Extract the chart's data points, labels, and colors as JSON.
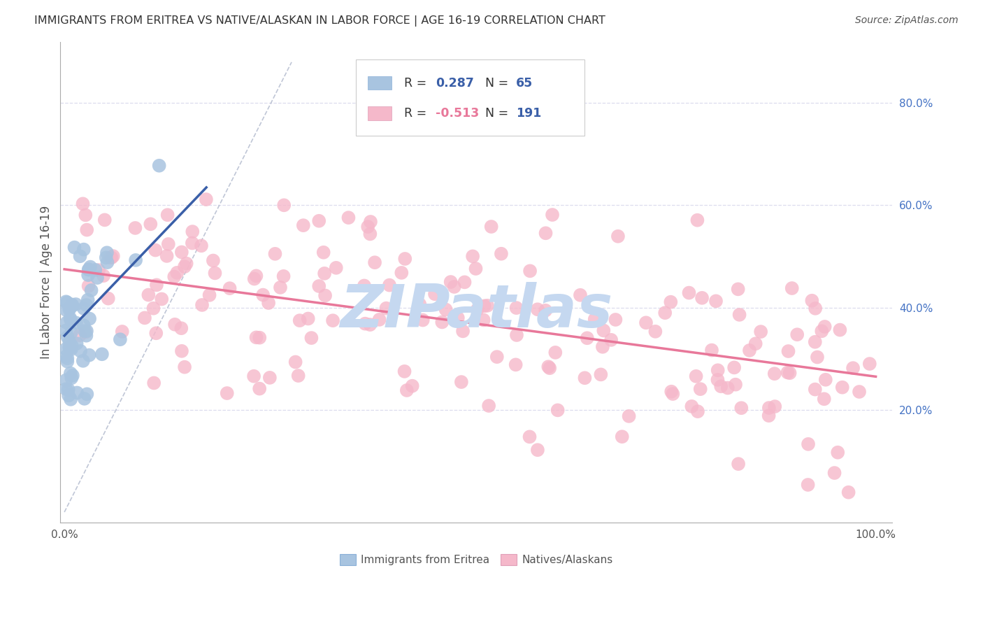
{
  "title": "IMMIGRANTS FROM ERITREA VS NATIVE/ALASKAN IN LABOR FORCE | AGE 16-19 CORRELATION CHART",
  "source_text": "Source: ZipAtlas.com",
  "ylabel": "In Labor Force | Age 16-19",
  "blue_R": 0.287,
  "blue_N": 65,
  "pink_R": -0.513,
  "pink_N": 191,
  "blue_color": "#a8c4e0",
  "pink_color": "#f5b8ca",
  "blue_line_color": "#3a5fa8",
  "pink_line_color": "#e8789a",
  "text_dark": "#333333",
  "legend_blue_val_color": "#3a5fa8",
  "legend_pink_val_color": "#e8789a",
  "legend_N_color": "#3a5fa8",
  "watermark_color": "#c5d8f0",
  "grid_color": "#ddddee",
  "background_color": "#ffffff",
  "right_axis_color": "#4472c4",
  "source_color": "#555555",
  "diag_color": "#b0b8cc",
  "blue_line_x": [
    0.0,
    0.175
  ],
  "blue_line_y": [
    0.345,
    0.635
  ],
  "pink_line_x": [
    0.0,
    1.0
  ],
  "pink_line_y": [
    0.475,
    0.265
  ],
  "diag_line_x": [
    0.0,
    0.28
  ],
  "diag_line_y": [
    0.0,
    0.88
  ],
  "ylim_low": -0.02,
  "ylim_high": 0.92,
  "xlim_low": -0.005,
  "xlim_high": 1.02
}
